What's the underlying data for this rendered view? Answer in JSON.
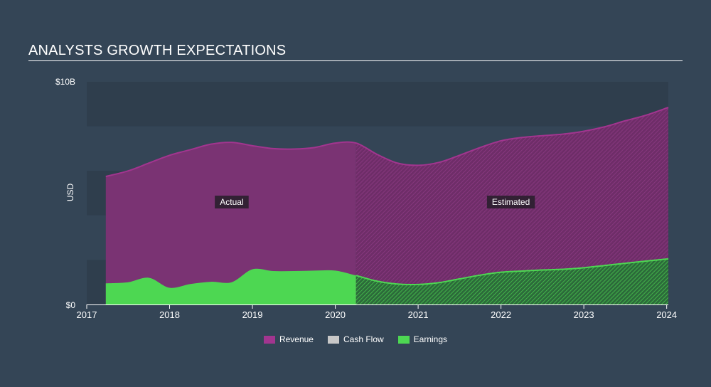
{
  "header": {
    "title": "ANALYSTS GROWTH EXPECTATIONS"
  },
  "colors": {
    "background": "#344556",
    "revenue": "#a2358f",
    "cash_flow": "#c8c8c8",
    "earnings": "#4dd752",
    "label_bg": "#2a1f2e"
  },
  "chart_data": {
    "type": "area",
    "title": "ANALYSTS GROWTH EXPECTATIONS",
    "ylabel": "USD",
    "xlabel": "",
    "ylim": [
      0,
      10
    ],
    "y_unit": "B",
    "y_ticks": [
      {
        "value": 0,
        "label": "$0"
      },
      {
        "value": 10,
        "label": "$10B"
      }
    ],
    "x_ticks": [
      {
        "value": 2017,
        "label": "2017"
      },
      {
        "value": 2018,
        "label": "2018"
      },
      {
        "value": 2019,
        "label": "2019"
      },
      {
        "value": 2020,
        "label": "2020"
      },
      {
        "value": 2021,
        "label": "2021"
      },
      {
        "value": 2022,
        "label": "2022"
      },
      {
        "value": 2023,
        "label": "2023"
      },
      {
        "value": 2024,
        "label": "2024"
      }
    ],
    "xlim": [
      2017,
      2024.02
    ],
    "actual_end": 2020.25,
    "annotations": [
      {
        "text": "Actual",
        "x": 2018.75,
        "y": 4.6
      },
      {
        "text": "Estimated",
        "x": 2022.12,
        "y": 4.6
      }
    ],
    "series": [
      {
        "name": "Revenue",
        "x": [
          2017.23,
          2017.5,
          2017.75,
          2018.0,
          2018.25,
          2018.5,
          2018.75,
          2019.0,
          2019.25,
          2019.5,
          2019.75,
          2020.0,
          2020.25,
          2020.5,
          2020.75,
          2021.0,
          2021.25,
          2021.5,
          2021.75,
          2022.0,
          2022.25,
          2022.5,
          2022.75,
          2023.0,
          2023.25,
          2023.5,
          2023.75,
          2024.02
        ],
        "values": [
          5.75,
          6.0,
          6.35,
          6.7,
          6.95,
          7.2,
          7.28,
          7.13,
          7.0,
          6.98,
          7.05,
          7.25,
          7.25,
          6.75,
          6.35,
          6.25,
          6.38,
          6.7,
          7.05,
          7.35,
          7.5,
          7.58,
          7.65,
          7.78,
          7.98,
          8.25,
          8.5,
          8.85
        ]
      },
      {
        "name": "Earnings",
        "x": [
          2017.23,
          2017.5,
          2017.75,
          2018.0,
          2018.25,
          2018.5,
          2018.75,
          2019.0,
          2019.25,
          2019.5,
          2019.75,
          2020.0,
          2020.25,
          2020.5,
          2020.75,
          2021.0,
          2021.25,
          2021.5,
          2021.75,
          2022.0,
          2022.25,
          2022.5,
          2022.75,
          2023.0,
          2023.25,
          2023.5,
          2023.75,
          2024.02
        ],
        "values": [
          0.95,
          1.0,
          1.2,
          0.75,
          0.92,
          1.02,
          1.0,
          1.58,
          1.5,
          1.5,
          1.52,
          1.52,
          1.3,
          1.05,
          0.92,
          0.9,
          0.98,
          1.15,
          1.32,
          1.45,
          1.5,
          1.55,
          1.58,
          1.65,
          1.75,
          1.85,
          1.95,
          2.05
        ]
      },
      {
        "name": "Cash Flow",
        "x": [],
        "values": []
      }
    ],
    "legend": [
      {
        "name": "Revenue",
        "color": "#a2358f"
      },
      {
        "name": "Cash Flow",
        "color": "#c8c8c8"
      },
      {
        "name": "Earnings",
        "color": "#4dd752"
      }
    ],
    "legend_position": "bottom-center",
    "grid": true
  }
}
